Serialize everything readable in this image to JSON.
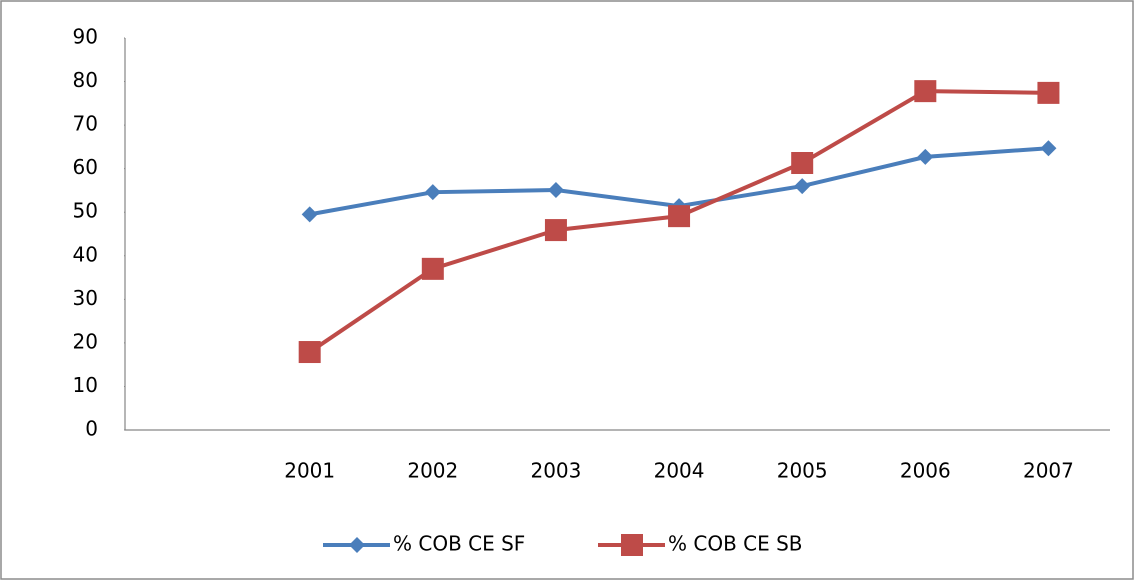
{
  "chart_data": {
    "type": "line",
    "categories": [
      null,
      "2001",
      "2002",
      "2003",
      "2004",
      "2005",
      "2006",
      "2007"
    ],
    "series": [
      {
        "name": "% COB CE SF",
        "color": "#4a7ebb",
        "marker": "diamond",
        "values": [
          null,
          49.5,
          54.6,
          55.1,
          51.4,
          56,
          62.7,
          64.7
        ]
      },
      {
        "name": "% COB CE SB",
        "color": "#be4b48",
        "marker": "square",
        "values": [
          null,
          17.9,
          37,
          45.9,
          49.1,
          61.3,
          77.8,
          77.4
        ]
      }
    ],
    "ylim": [
      0,
      90
    ],
    "yticks": [
      0,
      10,
      20,
      30,
      40,
      50,
      60,
      70,
      80,
      90
    ],
    "grid": false,
    "legend": "bottom"
  }
}
